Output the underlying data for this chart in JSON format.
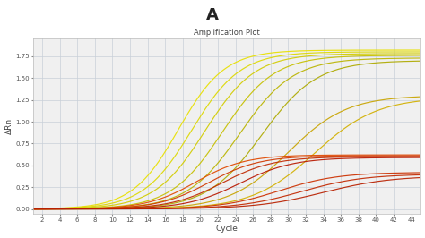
{
  "title": "A",
  "subtitle": "Amplification Plot",
  "xlabel": "Cycle",
  "ylabel": "ΔRn",
  "xlim": [
    1,
    45
  ],
  "ylim": [
    -0.05,
    1.95
  ],
  "xticks": [
    2,
    4,
    6,
    8,
    10,
    12,
    14,
    16,
    18,
    20,
    22,
    24,
    26,
    28,
    30,
    32,
    34,
    36,
    38,
    40,
    42,
    44
  ],
  "yticks": [
    0.0,
    0.25,
    0.5,
    0.75,
    1.0,
    1.25,
    1.5,
    1.75
  ],
  "bg_color": "#f0f0f0",
  "grid_color": "#c8d0d8",
  "yellow_curves": [
    {
      "mid": 17.5,
      "plateau": 1.82,
      "slope": 0.38
    },
    {
      "mid": 19.0,
      "plateau": 1.8,
      "slope": 0.36
    },
    {
      "mid": 20.5,
      "plateau": 1.78,
      "slope": 0.35
    },
    {
      "mid": 22.5,
      "plateau": 1.76,
      "slope": 0.34
    },
    {
      "mid": 24.5,
      "plateau": 1.73,
      "slope": 0.33
    },
    {
      "mid": 27.0,
      "plateau": 1.7,
      "slope": 0.32
    },
    {
      "mid": 30.0,
      "plateau": 1.3,
      "slope": 0.3
    },
    {
      "mid": 33.0,
      "plateau": 1.28,
      "slope": 0.28
    }
  ],
  "red_curves": [
    {
      "mid": 19.5,
      "plateau": 0.62,
      "slope": 0.36
    },
    {
      "mid": 21.0,
      "plateau": 0.61,
      "slope": 0.35
    },
    {
      "mid": 22.5,
      "plateau": 0.6,
      "slope": 0.34
    },
    {
      "mid": 24.5,
      "plateau": 0.59,
      "slope": 0.33
    },
    {
      "mid": 29.0,
      "plateau": 0.42,
      "slope": 0.3
    },
    {
      "mid": 31.5,
      "plateau": 0.4,
      "slope": 0.28
    },
    {
      "mid": 34.0,
      "plateau": 0.38,
      "slope": 0.26
    }
  ],
  "yellow_shades": [
    "#e8e000",
    "#ddd800",
    "#d2cc00",
    "#c6c000",
    "#bab400",
    "#aeaa00",
    "#c8a400",
    "#d2b000"
  ],
  "red_shades": [
    "#e04800",
    "#d03800",
    "#c02800",
    "#b81800",
    "#cc3000",
    "#c22800",
    "#b82000"
  ]
}
